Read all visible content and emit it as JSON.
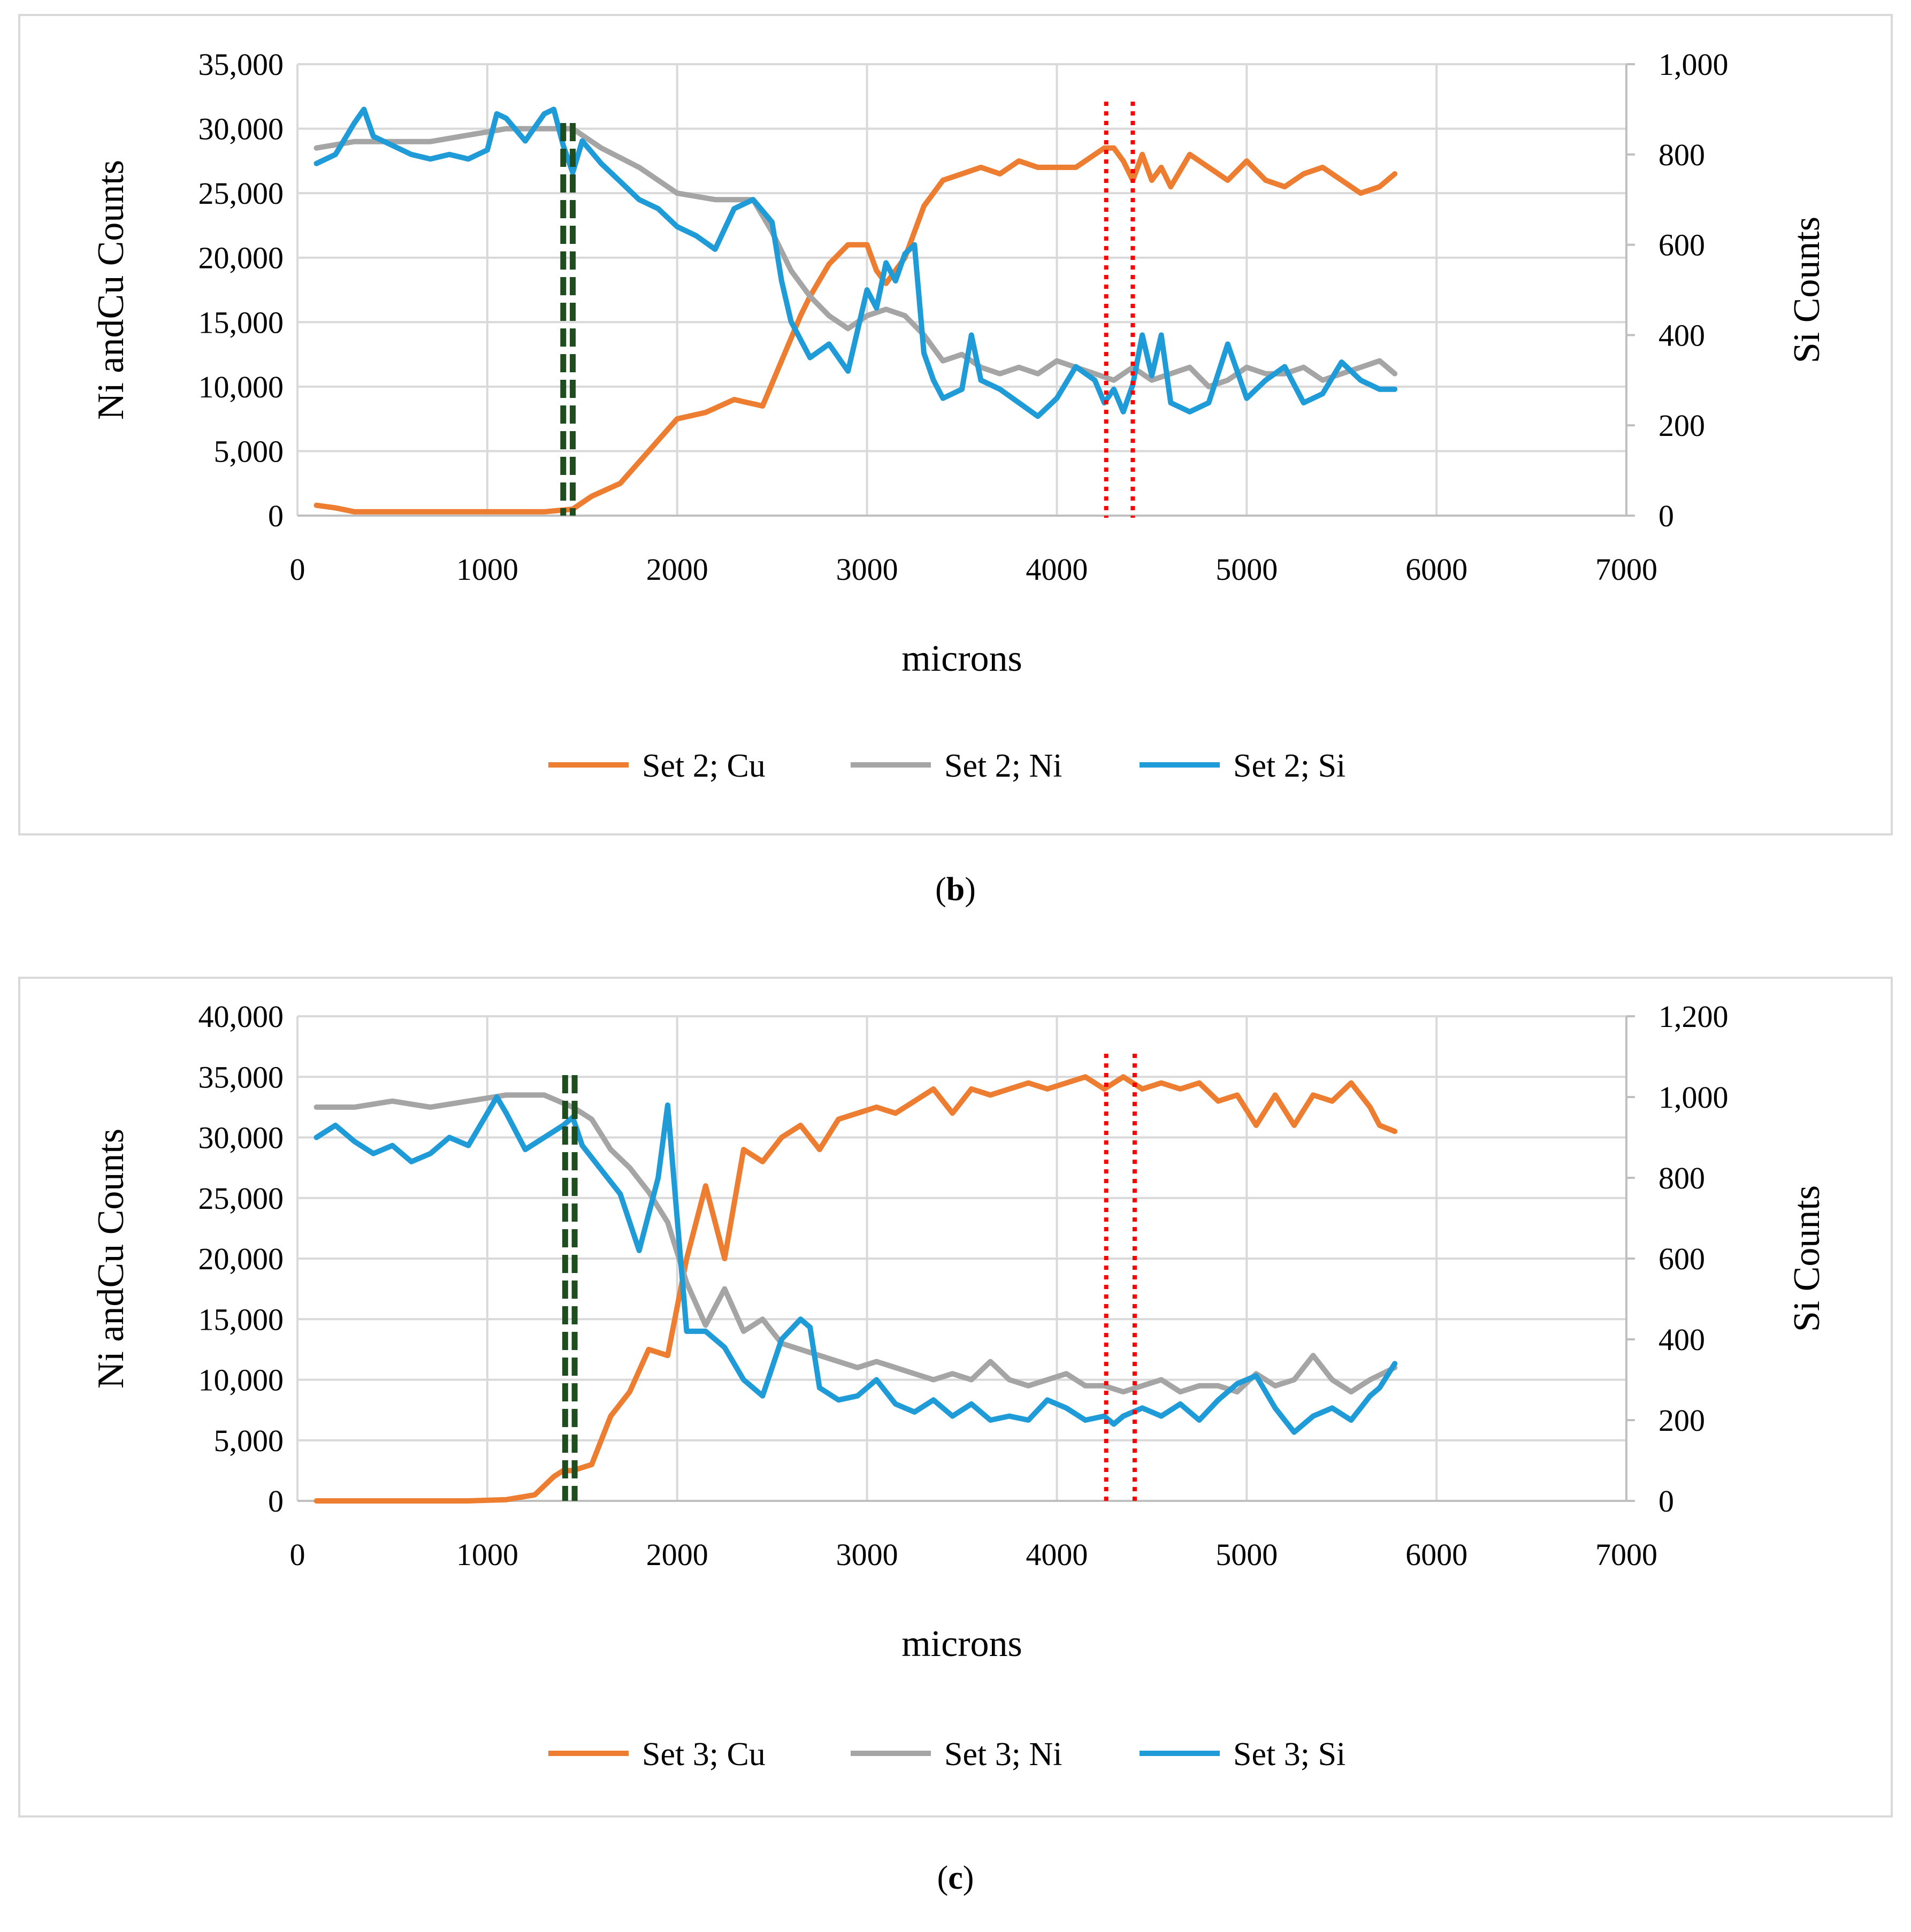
{
  "colors": {
    "cu": "#ed7d31",
    "ni": "#a5a5a5",
    "si": "#1f9bd7",
    "green_marker": "#1e4d1e",
    "red_marker": "#ff0000"
  },
  "chart_data": [
    {
      "type": "line",
      "panel": "b",
      "xlabel": "microns",
      "ylabel": "Ni andCu Counts",
      "ylabel_right": "Si Counts",
      "xlim": [
        0,
        7000
      ],
      "xticks": [
        0,
        1000,
        2000,
        3000,
        4000,
        5000,
        6000,
        7000
      ],
      "ylim": [
        0,
        35000
      ],
      "yticks": [
        0,
        5000,
        10000,
        15000,
        20000,
        25000,
        30000,
        35000
      ],
      "ytick_labels": [
        "0",
        "5,000",
        "10,000",
        "15,000",
        "20,000",
        "25,000",
        "30,000",
        "35,000"
      ],
      "ylim_right": [
        0,
        1000
      ],
      "yticks_right": [
        0,
        200,
        400,
        600,
        800,
        1000
      ],
      "ytick_labels_right": [
        "0",
        "200",
        "400",
        "600",
        "800",
        "1,000"
      ],
      "markers": {
        "green_dashed_x": [
          1400,
          1450
        ],
        "red_dotted_x": [
          4260,
          4400
        ]
      },
      "series": [
        {
          "name": "Set 2; Cu",
          "key": "cu",
          "axis": "left",
          "x": [
            100,
            200,
            300,
            500,
            700,
            900,
            1100,
            1300,
            1450,
            1550,
            1700,
            1850,
            2000,
            2150,
            2300,
            2450,
            2550,
            2650,
            2700,
            2800,
            2900,
            3000,
            3050,
            3100,
            3200,
            3300,
            3400,
            3500,
            3600,
            3700,
            3800,
            3900,
            4000,
            4100,
            4200,
            4250,
            4300,
            4350,
            4400,
            4450,
            4500,
            4550,
            4600,
            4700,
            4800,
            4900,
            5000,
            5100,
            5200,
            5300,
            5400,
            5500,
            5600,
            5700,
            5780
          ],
          "values": [
            800,
            600,
            300,
            300,
            300,
            300,
            300,
            300,
            500,
            1500,
            2500,
            5000,
            7500,
            8000,
            9000,
            8500,
            12000,
            15500,
            17000,
            19500,
            21000,
            21000,
            19000,
            18000,
            20000,
            24000,
            26000,
            26500,
            27000,
            26500,
            27500,
            27000,
            27000,
            27000,
            28000,
            28500,
            28500,
            27500,
            26000,
            28000,
            26000,
            27000,
            25500,
            28000,
            27000,
            26000,
            27500,
            26000,
            25500,
            26500,
            27000,
            26000,
            25000,
            25500,
            26500
          ]
        },
        {
          "name": "Set 2; Ni",
          "key": "ni",
          "axis": "left",
          "x": [
            100,
            300,
            500,
            700,
            900,
            1100,
            1300,
            1450,
            1600,
            1800,
            2000,
            2200,
            2400,
            2500,
            2600,
            2700,
            2800,
            2900,
            3000,
            3100,
            3200,
            3300,
            3400,
            3500,
            3600,
            3700,
            3800,
            3900,
            4000,
            4100,
            4200,
            4300,
            4400,
            4500,
            4600,
            4700,
            4800,
            4900,
            5000,
            5100,
            5200,
            5300,
            5400,
            5500,
            5600,
            5700,
            5780
          ],
          "values": [
            28500,
            29000,
            29000,
            29000,
            29500,
            30000,
            30000,
            30000,
            28500,
            27000,
            25000,
            24500,
            24500,
            22000,
            19000,
            17000,
            15500,
            14500,
            15500,
            16000,
            15500,
            14000,
            12000,
            12500,
            11500,
            11000,
            11500,
            11000,
            12000,
            11500,
            11000,
            10500,
            11500,
            10500,
            11000,
            11500,
            10000,
            10500,
            11500,
            11000,
            11000,
            11500,
            10500,
            11000,
            11500,
            12000,
            11000
          ]
        },
        {
          "name": "Set 2; Si",
          "key": "si",
          "axis": "right",
          "x": [
            100,
            200,
            300,
            350,
            400,
            500,
            600,
            700,
            800,
            900,
            1000,
            1050,
            1100,
            1200,
            1300,
            1350,
            1400,
            1450,
            1500,
            1600,
            1700,
            1800,
            1900,
            2000,
            2100,
            2200,
            2300,
            2400,
            2500,
            2550,
            2600,
            2700,
            2800,
            2900,
            3000,
            3050,
            3100,
            3150,
            3200,
            3250,
            3300,
            3350,
            3400,
            3500,
            3550,
            3600,
            3700,
            3800,
            3900,
            4000,
            4100,
            4200,
            4250,
            4300,
            4350,
            4400,
            4450,
            4500,
            4550,
            4600,
            4700,
            4800,
            4900,
            5000,
            5100,
            5200,
            5300,
            5400,
            5500,
            5600,
            5700,
            5780
          ],
          "values": [
            780,
            800,
            870,
            900,
            840,
            820,
            800,
            790,
            800,
            790,
            810,
            890,
            880,
            830,
            890,
            900,
            820,
            760,
            830,
            780,
            740,
            700,
            680,
            640,
            620,
            590,
            680,
            700,
            650,
            520,
            430,
            350,
            380,
            320,
            500,
            460,
            560,
            520,
            580,
            600,
            360,
            300,
            260,
            280,
            400,
            300,
            280,
            250,
            220,
            260,
            330,
            300,
            250,
            280,
            230,
            290,
            400,
            310,
            400,
            250,
            230,
            250,
            380,
            260,
            300,
            330,
            250,
            270,
            340,
            300,
            280,
            280
          ]
        }
      ]
    },
    {
      "type": "line",
      "panel": "c",
      "xlabel": "microns",
      "ylabel": "Ni andCu Counts",
      "ylabel_right": "Si Counts",
      "xlim": [
        0,
        7000
      ],
      "xticks": [
        0,
        1000,
        2000,
        3000,
        4000,
        5000,
        6000,
        7000
      ],
      "ylim": [
        0,
        40000
      ],
      "yticks": [
        0,
        5000,
        10000,
        15000,
        20000,
        25000,
        30000,
        35000,
        40000
      ],
      "ytick_labels": [
        "0",
        "5,000",
        "10,000",
        "15,000",
        "20,000",
        "25,000",
        "30,000",
        "35,000",
        "40,000"
      ],
      "ylim_right": [
        0,
        1200
      ],
      "yticks_right": [
        0,
        200,
        400,
        600,
        800,
        1000,
        1200
      ],
      "ytick_labels_right": [
        "0",
        "200",
        "400",
        "600",
        "800",
        "1,000",
        "1,200"
      ],
      "markers": {
        "green_dashed_x": [
          1410,
          1460
        ],
        "red_dotted_x": [
          4260,
          4410
        ]
      },
      "series": [
        {
          "name": "Set 3; Cu",
          "key": "cu",
          "axis": "left",
          "x": [
            100,
            300,
            500,
            700,
            900,
            1100,
            1250,
            1350,
            1400,
            1450,
            1550,
            1650,
            1750,
            1850,
            1950,
            2050,
            2150,
            2250,
            2350,
            2450,
            2550,
            2650,
            2750,
            2850,
            2950,
            3050,
            3150,
            3250,
            3350,
            3450,
            3550,
            3650,
            3750,
            3850,
            3950,
            4050,
            4150,
            4250,
            4350,
            4450,
            4550,
            4650,
            4750,
            4850,
            4950,
            5050,
            5150,
            5250,
            5350,
            5450,
            5550,
            5650,
            5700,
            5780
          ],
          "values": [
            0,
            0,
            0,
            0,
            0,
            100,
            500,
            2000,
            2500,
            2500,
            3000,
            7000,
            9000,
            12500,
            12000,
            20000,
            26000,
            20000,
            29000,
            28000,
            30000,
            31000,
            29000,
            31500,
            32000,
            32500,
            32000,
            33000,
            34000,
            32000,
            34000,
            33500,
            34000,
            34500,
            34000,
            34500,
            35000,
            34000,
            35000,
            34000,
            34500,
            34000,
            34500,
            33000,
            33500,
            31000,
            33500,
            31000,
            33500,
            33000,
            34500,
            32500,
            31000,
            30500
          ]
        },
        {
          "name": "Set 3; Ni",
          "key": "ni",
          "axis": "left",
          "x": [
            100,
            300,
            500,
            700,
            900,
            1100,
            1300,
            1450,
            1550,
            1650,
            1750,
            1850,
            1950,
            2050,
            2150,
            2250,
            2350,
            2450,
            2550,
            2650,
            2750,
            2850,
            2950,
            3050,
            3150,
            3250,
            3350,
            3450,
            3550,
            3650,
            3750,
            3850,
            3950,
            4050,
            4150,
            4250,
            4350,
            4450,
            4550,
            4650,
            4750,
            4850,
            4950,
            5050,
            5150,
            5250,
            5350,
            5450,
            5550,
            5650,
            5780
          ],
          "values": [
            32500,
            32500,
            33000,
            32500,
            33000,
            33500,
            33500,
            32500,
            31500,
            29000,
            27500,
            25500,
            23000,
            18000,
            14500,
            17500,
            14000,
            15000,
            13000,
            12500,
            12000,
            11500,
            11000,
            11500,
            11000,
            10500,
            10000,
            10500,
            10000,
            11500,
            10000,
            9500,
            10000,
            10500,
            9500,
            9500,
            9000,
            9500,
            10000,
            9000,
            9500,
            9500,
            9000,
            10500,
            9500,
            10000,
            12000,
            10000,
            9000,
            10000,
            11000
          ]
        },
        {
          "name": "Set 3; Si",
          "key": "si",
          "axis": "right",
          "x": [
            100,
            200,
            300,
            400,
            500,
            600,
            700,
            800,
            900,
            1000,
            1050,
            1100,
            1200,
            1300,
            1400,
            1450,
            1500,
            1600,
            1700,
            1800,
            1900,
            1950,
            2000,
            2050,
            2150,
            2250,
            2350,
            2450,
            2550,
            2650,
            2700,
            2750,
            2850,
            2950,
            3050,
            3150,
            3250,
            3350,
            3450,
            3550,
            3650,
            3750,
            3850,
            3950,
            4050,
            4150,
            4250,
            4300,
            4350,
            4450,
            4550,
            4650,
            4750,
            4850,
            4950,
            5050,
            5150,
            5250,
            5350,
            5450,
            5550,
            5650,
            5700,
            5780
          ],
          "values": [
            900,
            930,
            890,
            860,
            880,
            840,
            860,
            900,
            880,
            960,
            1000,
            960,
            870,
            900,
            930,
            950,
            880,
            820,
            760,
            620,
            800,
            980,
            700,
            420,
            420,
            380,
            300,
            260,
            400,
            450,
            430,
            280,
            250,
            260,
            300,
            240,
            220,
            250,
            210,
            240,
            200,
            210,
            200,
            250,
            230,
            200,
            210,
            190,
            210,
            230,
            210,
            240,
            200,
            250,
            290,
            310,
            230,
            170,
            210,
            230,
            200,
            260,
            280,
            340
          ]
        }
      ]
    }
  ],
  "captions": {
    "b": "b",
    "c": "c"
  }
}
